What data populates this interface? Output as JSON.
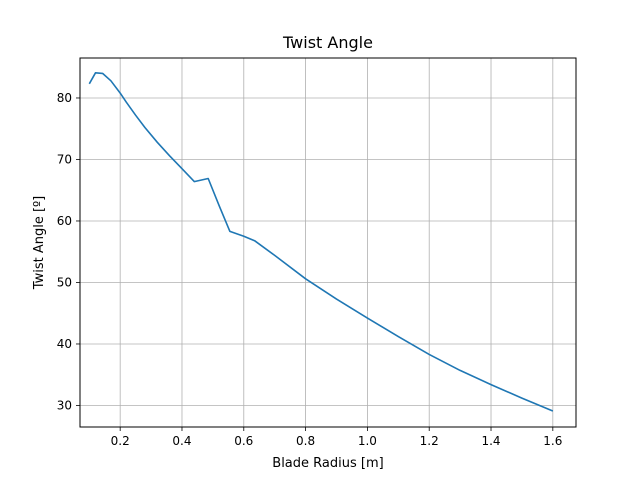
{
  "chart_data": {
    "type": "line",
    "title": "Twist Angle",
    "xlabel": "Blade Radius [m]",
    "ylabel": "Twist Angle [º]",
    "xlim": [
      0.07,
      1.675
    ],
    "ylim": [
      26.5,
      86.5
    ],
    "xticks": [
      0.2,
      0.4,
      0.6,
      0.8,
      1.0,
      1.2,
      1.4,
      1.6
    ],
    "xtick_labels": [
      "0.2",
      "0.4",
      "0.6",
      "0.8",
      "1.0",
      "1.2",
      "1.4",
      "1.6"
    ],
    "yticks": [
      30,
      40,
      50,
      60,
      70,
      80
    ],
    "ytick_labels": [
      "30",
      "40",
      "50",
      "60",
      "70",
      "80"
    ],
    "grid": true,
    "series": [
      {
        "color": "#1f77b4",
        "x": [
          0.1,
          0.12,
          0.143,
          0.17,
          0.2,
          0.22,
          0.25,
          0.28,
          0.32,
          0.36,
          0.4,
          0.44,
          0.485,
          0.52,
          0.555,
          0.6,
          0.635,
          0.7,
          0.8,
          0.9,
          1.0,
          1.1,
          1.2,
          1.3,
          1.4,
          1.5,
          1.6
        ],
        "y": [
          82.3,
          84.1,
          84.0,
          82.8,
          80.8,
          79.3,
          77.2,
          75.2,
          72.8,
          70.6,
          68.5,
          66.4,
          66.9,
          62.5,
          58.3,
          57.5,
          56.8,
          54.4,
          50.6,
          47.3,
          44.2,
          41.2,
          38.3,
          35.7,
          33.4,
          31.2,
          29.1
        ]
      }
    ]
  }
}
